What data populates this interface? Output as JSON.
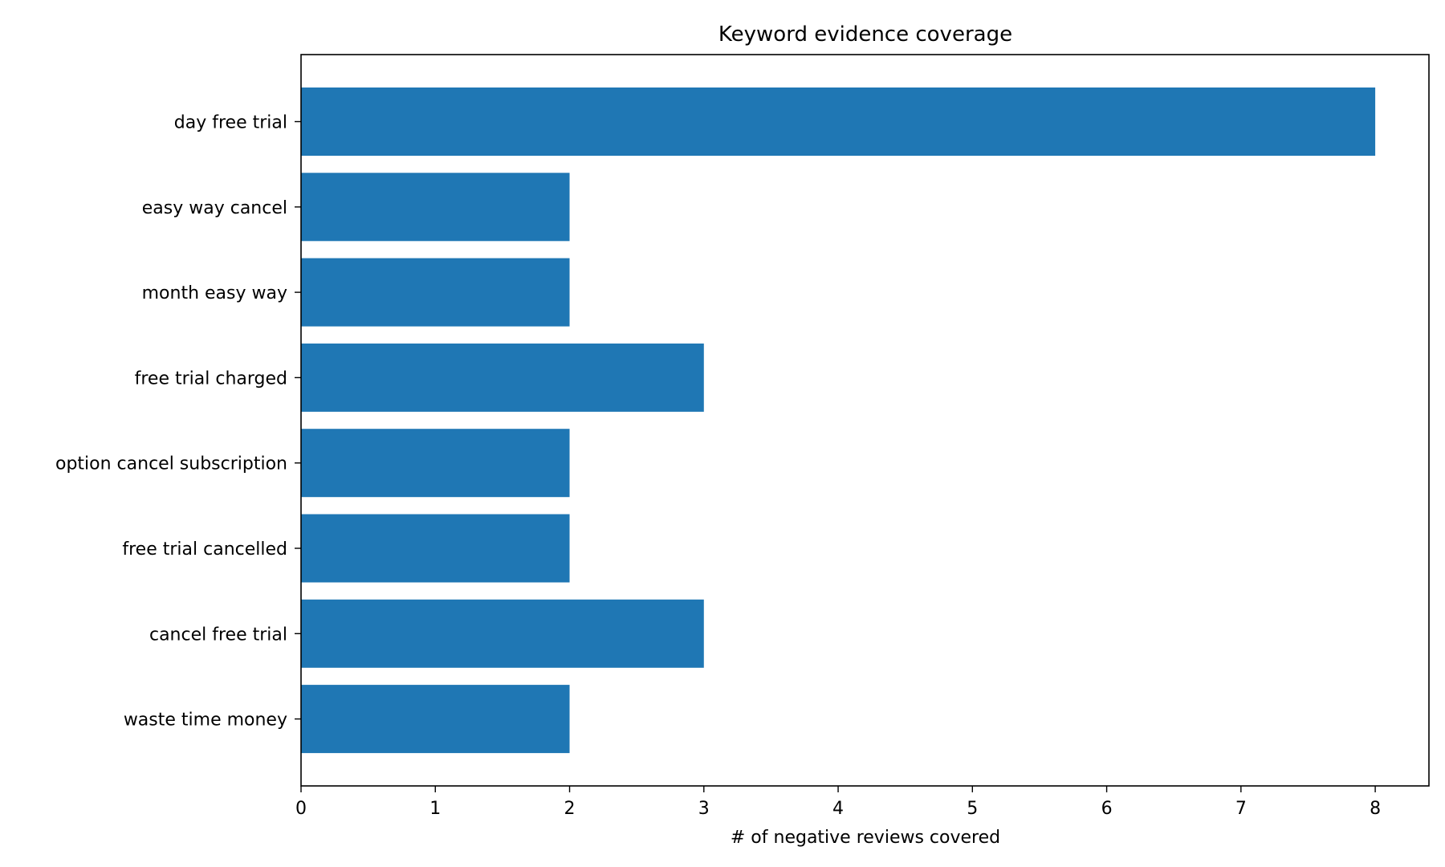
{
  "chart_data": {
    "type": "bar",
    "orientation": "horizontal",
    "title": "Keyword evidence coverage",
    "xlabel": "# of negative reviews covered",
    "ylabel": "",
    "categories": [
      "day free trial",
      "easy way cancel",
      "month easy way",
      "free trial charged",
      "option cancel subscription",
      "free trial cancelled",
      "cancel free trial",
      "waste time money"
    ],
    "values": [
      8,
      2,
      2,
      3,
      2,
      2,
      3,
      2
    ],
    "xlim": [
      0,
      8.4
    ],
    "xticks": [
      0,
      1,
      2,
      3,
      4,
      5,
      6,
      7,
      8
    ],
    "grid": false,
    "legend": "none",
    "bar_color": "#1f77b4"
  }
}
